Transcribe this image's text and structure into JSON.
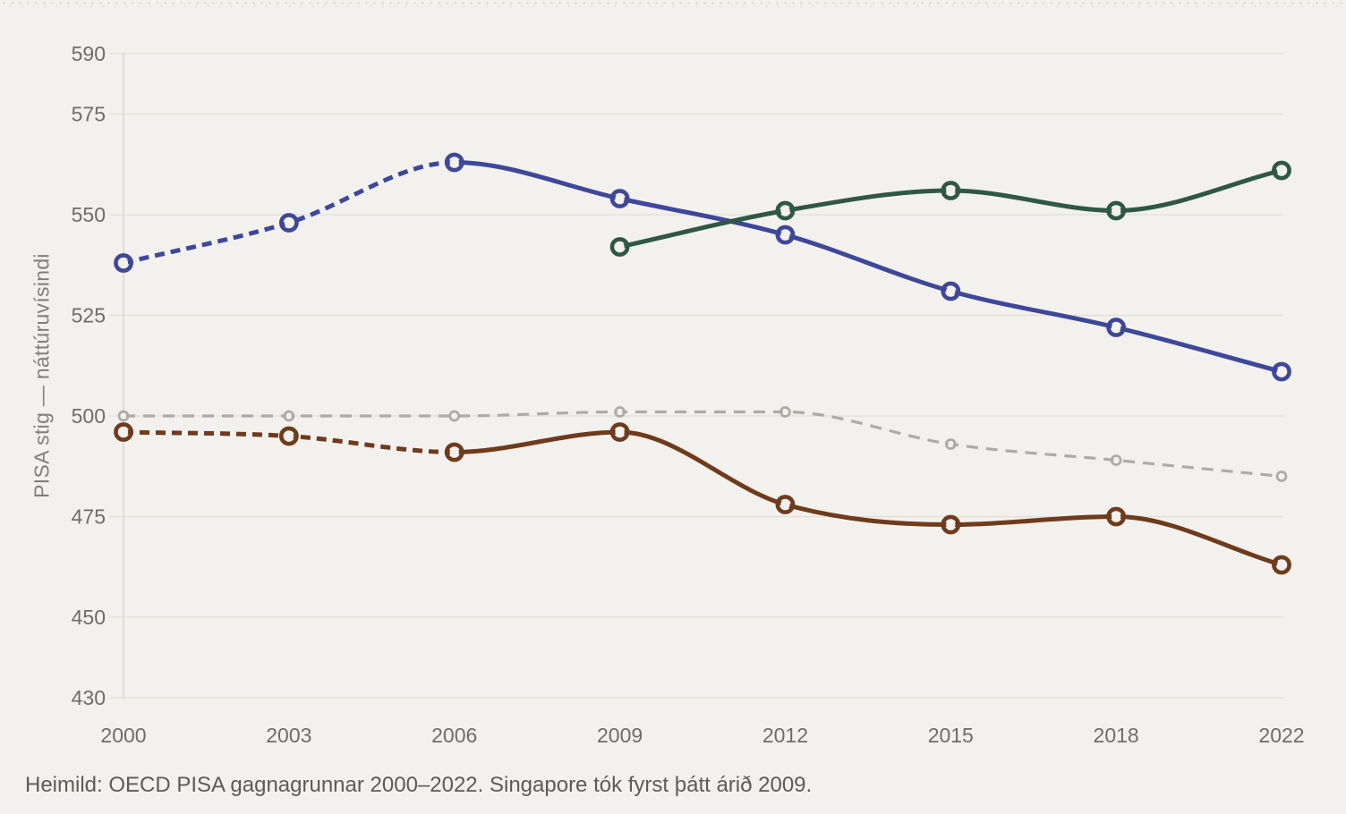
{
  "chart": {
    "y_axis_title": "PISA stig — náttúruvísindi",
    "source_note": "Heimild: OECD PISA gagnagrunnar 2000–2022. Singapore tók fyrst þátt árið 2009."
  },
  "chart_data": {
    "type": "line",
    "title": "",
    "xlabel": "",
    "ylabel": "PISA stig — náttúruvísindi",
    "x_categories": [
      "2000",
      "2003",
      "2006",
      "2009",
      "2012",
      "2015",
      "2018",
      "2022"
    ],
    "y_ticks": [
      590,
      575,
      550,
      525,
      500,
      475,
      450,
      430
    ],
    "ylim": [
      430,
      590
    ],
    "grid": "horizontal",
    "legend": "none",
    "background_color": "#F3F1ED",
    "gridline_color": "#E2DFDA",
    "axis_line_color": "#D5D2CD",
    "tick_label_color": "#6E6D69",
    "marker_style": "open-circle",
    "series": [
      {
        "id": "gray-dashed-line",
        "color": "#ADABA7",
        "marker_size": "small",
        "line_style": "dashed",
        "values": [
          500,
          500,
          500,
          501,
          501,
          493,
          489,
          485
        ]
      },
      {
        "id": "brown-line",
        "color": "#6E3B1C",
        "marker_size": "large",
        "line_style": "dashed-then-solid",
        "dash_split_index": 2,
        "values": [
          496,
          495,
          491,
          496,
          478,
          473,
          475,
          463
        ]
      },
      {
        "id": "blue-line",
        "color": "#3E4899",
        "marker_size": "large",
        "line_style": "dashed-then-solid",
        "dash_split_index": 2,
        "values": [
          538,
          548,
          563,
          554,
          545,
          531,
          522,
          511
        ]
      },
      {
        "id": "green-line",
        "color": "#2F5746",
        "marker_size": "large",
        "line_style": "solid",
        "values": [
          null,
          null,
          null,
          542,
          551,
          556,
          551,
          561
        ]
      }
    ]
  }
}
